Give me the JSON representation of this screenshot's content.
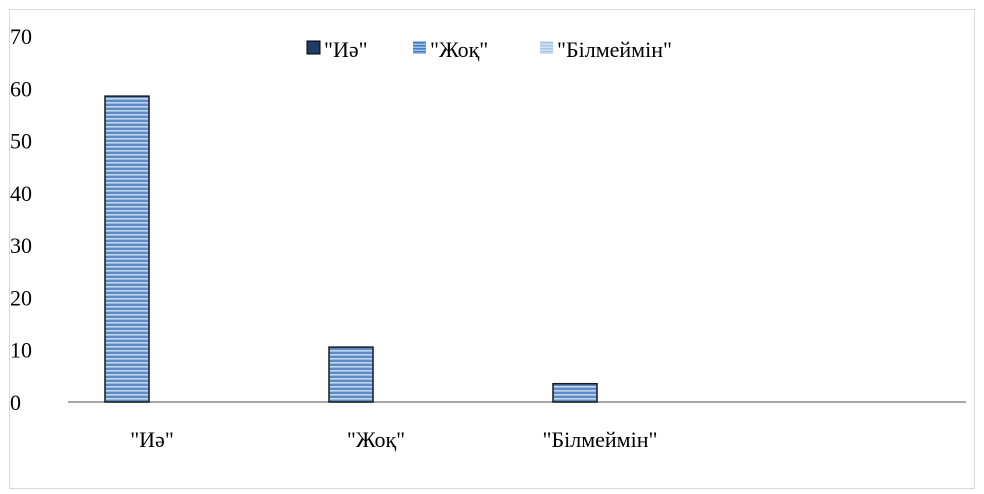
{
  "chart_data": {
    "type": "bar",
    "categories": [
      "\"Иә\"",
      "\"Жоқ\"",
      "\"Білмеймін\""
    ],
    "series": [
      {
        "name": "\"Иә\"",
        "values": [
          58.5,
          10.5,
          3.5
        ]
      },
      {
        "name": "\"Жоқ\"",
        "values": [
          null,
          null,
          null
        ]
      },
      {
        "name": "\"Білмеймін\"",
        "values": [
          null,
          null,
          null
        ]
      }
    ],
    "ylim": [
      0,
      70
    ],
    "yticks": [
      "0",
      "10",
      "20",
      "30",
      "40",
      "50",
      "60",
      "70"
    ],
    "title": "",
    "xlabel": "",
    "ylabel": "",
    "grid": false,
    "legend_position": "top",
    "colors": {
      "bar_fill": "#5b8ac6",
      "bar_stripe": "#dbe6f4",
      "bar_border": "#1a1a1a",
      "legend_1": "#1f3b66",
      "legend_2": "#3f7fc8",
      "legend_3": "#a9c4e6",
      "axis": "#8c8c8c"
    }
  }
}
